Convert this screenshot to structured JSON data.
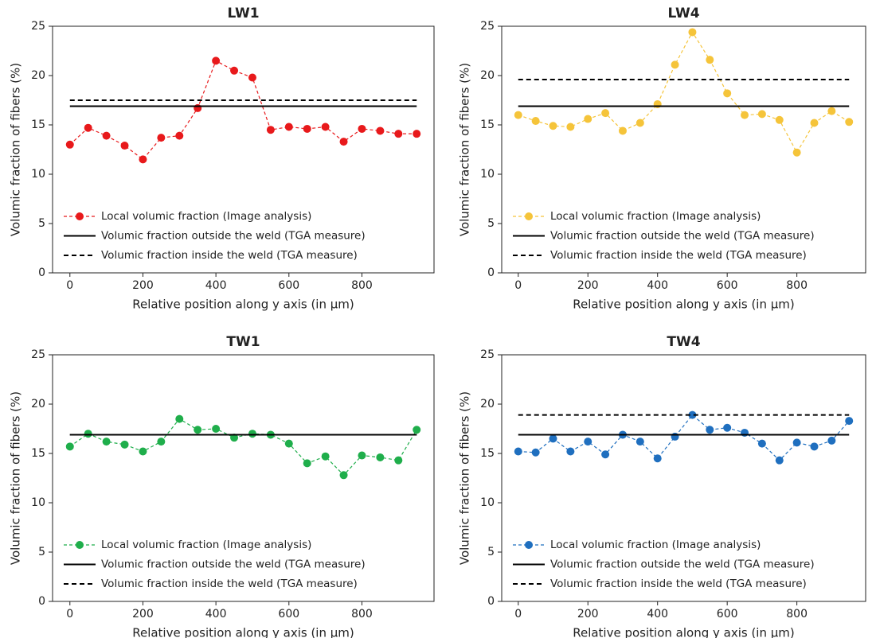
{
  "chart_data": [
    {
      "type": "line",
      "title": "LW1",
      "xlabel": "Relative position along y axis (in μm)",
      "ylabel": "Volumic fraction of fibers (%)",
      "x": [
        0,
        50,
        100,
        150,
        200,
        250,
        300,
        350,
        400,
        450,
        500,
        550,
        600,
        650,
        700,
        750,
        800,
        850,
        900,
        950
      ],
      "xlim": [
        -47.5,
        997.5
      ],
      "xticks": [
        0,
        200,
        400,
        600,
        800
      ],
      "ylim": [
        0,
        25
      ],
      "yticks": [
        0,
        5,
        10,
        15,
        20,
        25
      ],
      "legend": "lower left",
      "series": [
        {
          "name": "Local volumic fraction (Image analysis)",
          "color": "#e8191b",
          "linestyle": "dashed",
          "marker": "o",
          "values": [
            13.0,
            14.7,
            13.9,
            12.9,
            11.5,
            13.7,
            13.9,
            16.7,
            21.5,
            20.5,
            19.8,
            14.5,
            14.8,
            14.6,
            14.8,
            13.3,
            14.6,
            14.4,
            14.1,
            14.1
          ]
        },
        {
          "name": "Volumic fraction outside the weld (TGA measure)",
          "color": "#000000",
          "linestyle": "solid",
          "x": [
            0,
            950
          ],
          "values": [
            16.9,
            16.9
          ]
        },
        {
          "name": "Volumic fraction inside the weld (TGA measure)",
          "color": "#000000",
          "linestyle": "dashed",
          "x": [
            0,
            950
          ],
          "values": [
            17.5,
            17.5
          ]
        }
      ]
    },
    {
      "type": "line",
      "title": "LW4",
      "xlabel": "Relative position along y axis (in μm)",
      "ylabel": "Volumic fraction of fibers (%)",
      "x": [
        0,
        50,
        100,
        150,
        200,
        250,
        300,
        350,
        400,
        450,
        500,
        550,
        600,
        650,
        700,
        750,
        800,
        850,
        900,
        950
      ],
      "xlim": [
        -47.5,
        997.5
      ],
      "xticks": [
        0,
        200,
        400,
        600,
        800
      ],
      "ylim": [
        0,
        25
      ],
      "yticks": [
        0,
        5,
        10,
        15,
        20,
        25
      ],
      "legend": "lower left",
      "series": [
        {
          "name": "Local volumic fraction (Image analysis)",
          "color": "#f5c43a",
          "linestyle": "dashed",
          "marker": "o",
          "values": [
            16.0,
            15.4,
            14.9,
            14.8,
            15.6,
            16.2,
            14.4,
            15.2,
            17.1,
            21.1,
            24.4,
            21.6,
            18.2,
            16.0,
            16.1,
            15.5,
            12.2,
            15.2,
            16.4,
            15.3
          ]
        },
        {
          "name": "Volumic fraction outside the weld (TGA measure)",
          "color": "#000000",
          "linestyle": "solid",
          "x": [
            0,
            950
          ],
          "values": [
            16.9,
            16.9
          ]
        },
        {
          "name": "Volumic fraction inside the weld (TGA measure)",
          "color": "#000000",
          "linestyle": "dashed",
          "x": [
            0,
            950
          ],
          "values": [
            19.6,
            19.6
          ]
        }
      ]
    },
    {
      "type": "line",
      "title": "TW1",
      "xlabel": "Relative position along y axis (in μm)",
      "ylabel": "Volumic fraction of fibers (%)",
      "x": [
        0,
        50,
        100,
        150,
        200,
        250,
        300,
        350,
        400,
        450,
        500,
        550,
        600,
        650,
        700,
        750,
        800,
        850,
        900,
        950
      ],
      "xlim": [
        -47.5,
        997.5
      ],
      "xticks": [
        0,
        200,
        400,
        600,
        800
      ],
      "ylim": [
        0,
        25
      ],
      "yticks": [
        0,
        5,
        10,
        15,
        20,
        25
      ],
      "legend": "lower left",
      "series": [
        {
          "name": "Local volumic fraction (Image analysis)",
          "color": "#1fae4b",
          "linestyle": "dashed",
          "marker": "o",
          "values": [
            15.7,
            17.0,
            16.2,
            15.9,
            15.2,
            16.2,
            18.5,
            17.4,
            17.5,
            16.6,
            17.0,
            16.9,
            16.0,
            14.0,
            14.7,
            12.8,
            14.8,
            14.6,
            14.3,
            17.4
          ]
        },
        {
          "name": "Volumic fraction outside the weld (TGA measure)",
          "color": "#000000",
          "linestyle": "solid",
          "x": [
            0,
            950
          ],
          "values": [
            16.9,
            16.9
          ]
        },
        {
          "name": "Volumic fraction inside the weld (TGA measure)",
          "color": "#000000",
          "linestyle": "dashed",
          "x": [
            0,
            950
          ],
          "values": [
            16.9,
            16.9
          ]
        }
      ]
    },
    {
      "type": "line",
      "title": "TW4",
      "xlabel": "Relative position along y axis (in μm)",
      "ylabel": "Volumic fraction of fibers (%)",
      "x": [
        0,
        50,
        100,
        150,
        200,
        250,
        300,
        350,
        400,
        450,
        500,
        550,
        600,
        650,
        700,
        750,
        800,
        850,
        900,
        950
      ],
      "xlim": [
        -47.5,
        997.5
      ],
      "xticks": [
        0,
        200,
        400,
        600,
        800
      ],
      "ylim": [
        0,
        25
      ],
      "yticks": [
        0,
        5,
        10,
        15,
        20,
        25
      ],
      "legend": "lower left",
      "series": [
        {
          "name": "Local volumic fraction (Image analysis)",
          "color": "#1f6fbf",
          "linestyle": "dashed",
          "marker": "o",
          "values": [
            15.2,
            15.1,
            16.5,
            15.2,
            16.2,
            14.9,
            16.9,
            16.2,
            14.5,
            16.7,
            18.9,
            17.4,
            17.6,
            17.1,
            16.0,
            14.3,
            16.1,
            15.7,
            16.3,
            18.3
          ]
        },
        {
          "name": "Volumic fraction outside the weld (TGA measure)",
          "color": "#000000",
          "linestyle": "solid",
          "x": [
            0,
            950
          ],
          "values": [
            16.9,
            16.9
          ]
        },
        {
          "name": "Volumic fraction inside the weld (TGA measure)",
          "color": "#000000",
          "linestyle": "dashed",
          "x": [
            0,
            950
          ],
          "values": [
            18.9,
            18.9
          ]
        }
      ]
    }
  ]
}
